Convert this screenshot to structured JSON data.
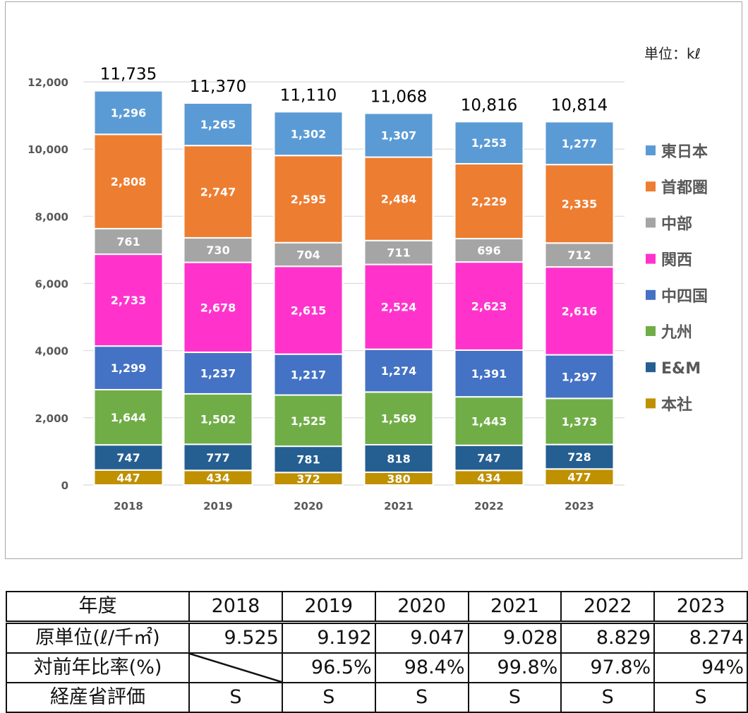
{
  "chart_data": {
    "type": "bar",
    "stacked": true,
    "unit_label": "単位：kℓ",
    "categories": [
      "2018",
      "2019",
      "2020",
      "2021",
      "2022",
      "2023"
    ],
    "totals": [
      "11,735",
      "11,370",
      "11,110",
      "11,068",
      "10,816",
      "10,814"
    ],
    "ylim": [
      0,
      12000
    ],
    "yticks": [
      "0",
      "2,000",
      "4,000",
      "6,000",
      "8,000",
      "10,000",
      "12,000"
    ],
    "grid": true,
    "legend_position": "right",
    "series": [
      {
        "name": "本社",
        "color": "#bf9000",
        "values": [
          447,
          434,
          372,
          380,
          434,
          477
        ]
      },
      {
        "name": "E&M",
        "color": "#255e91",
        "values": [
          747,
          777,
          781,
          818,
          747,
          728
        ]
      },
      {
        "name": "九州",
        "color": "#70ad47",
        "values": [
          1644,
          1502,
          1525,
          1569,
          1443,
          1373
        ]
      },
      {
        "name": "中四国",
        "color": "#4472c4",
        "values": [
          1299,
          1237,
          1217,
          1274,
          1391,
          1297
        ]
      },
      {
        "name": "関西",
        "color": "#ff33cc",
        "values": [
          2733,
          2678,
          2615,
          2524,
          2623,
          2616
        ]
      },
      {
        "name": "中部",
        "color": "#a5a5a5",
        "values": [
          761,
          730,
          704,
          711,
          696,
          712
        ]
      },
      {
        "name": "首都圏",
        "color": "#ed7d31",
        "values": [
          2808,
          2747,
          2595,
          2484,
          2229,
          2335
        ]
      },
      {
        "name": "東日本",
        "color": "#5b9bd5",
        "values": [
          1296,
          1265,
          1302,
          1307,
          1253,
          1277
        ]
      }
    ]
  },
  "table": {
    "header": [
      "年度",
      "2018",
      "2019",
      "2020",
      "2021",
      "2022",
      "2023"
    ],
    "rows": [
      {
        "label": "原単位(ℓ/千㎡)",
        "values": [
          "9.525",
          "9.192",
          "9.047",
          "9.028",
          "8.829",
          "8.274"
        ]
      },
      {
        "label": "対前年比率(%)",
        "values": [
          "",
          "96.5%",
          "98.4%",
          "99.8%",
          "97.8%",
          "94%"
        ]
      },
      {
        "label": "経産省評価",
        "values": [
          "S",
          "S",
          "S",
          "S",
          "S",
          "S"
        ]
      }
    ]
  }
}
